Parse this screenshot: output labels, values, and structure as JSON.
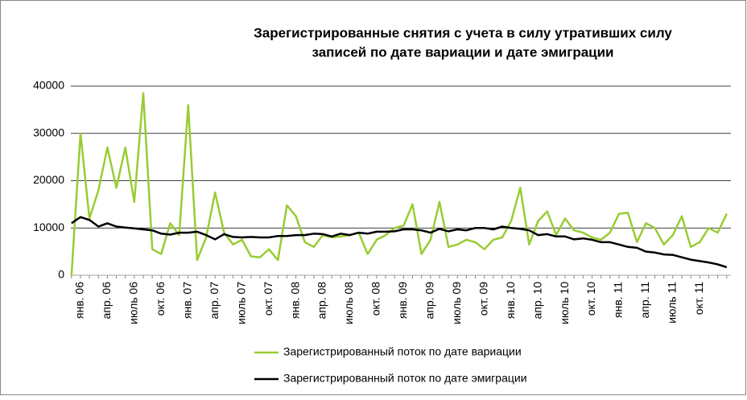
{
  "chart_data": {
    "type": "line",
    "title": [
      "Зарегистрированные снятия с учета в силу утративших силу",
      "записей по дате вариации и дате эмиграции"
    ],
    "categories": [
      null,
      "янв. 06",
      null,
      null,
      "апр. 06",
      null,
      null,
      "июль 06",
      null,
      null,
      "окт. 06",
      null,
      null,
      "янв. 07",
      null,
      null,
      "апр. 07",
      null,
      null,
      "июль 07",
      null,
      null,
      "окт. 07",
      null,
      null,
      "янв. 08",
      null,
      null,
      "апр. 08",
      null,
      null,
      "июль 08",
      null,
      null,
      "окт. 08",
      null,
      null,
      "янв. 09",
      null,
      null,
      "апр. 09",
      null,
      null,
      "июль 09",
      null,
      null,
      "окт. 09",
      null,
      null,
      "янв. 10",
      null,
      null,
      "апр. 10",
      null,
      null,
      "июль 10",
      null,
      null,
      "окт. 10",
      null,
      null,
      "янв. 11",
      null,
      null,
      "апр. 11",
      null,
      null,
      "июль 11",
      null,
      null,
      "окт. 11",
      null,
      null,
      null
    ],
    "series": [
      {
        "name": "Зарегистрированный поток по дате вариации",
        "color": "#99cc33",
        "values": [
          0,
          30000,
          12000,
          18000,
          27000,
          18500,
          27000,
          15500,
          38500,
          5500,
          4500,
          11000,
          8500,
          36000,
          3200,
          8000,
          17500,
          9000,
          6500,
          7500,
          4000,
          3800,
          5500,
          3200,
          14800,
          12500,
          7000,
          6000,
          8500,
          8000,
          8200,
          8500,
          9000,
          4500,
          7500,
          8500,
          10000,
          10500,
          15000,
          4500,
          7500,
          15500,
          6000,
          6500,
          7500,
          7000,
          5500,
          7500,
          8000,
          11500,
          18500,
          6500,
          11500,
          13500,
          8500,
          12000,
          9500,
          9000,
          8000,
          7500,
          9000,
          13000,
          13200,
          7000,
          11000,
          10000,
          6500,
          8500,
          12500,
          6000,
          7000,
          10000,
          9000,
          13000
        ]
      },
      {
        "name": "Зарегистрированный поток по дате эмиграции",
        "color": "#000000",
        "values": [
          11000,
          12300,
          11700,
          10300,
          11000,
          10300,
          10100,
          9900,
          9700,
          9500,
          8800,
          8600,
          9000,
          9000,
          9200,
          8500,
          7600,
          8700,
          8100,
          8000,
          8100,
          8000,
          8000,
          8300,
          8300,
          8500,
          8500,
          8800,
          8700,
          8200,
          8800,
          8500,
          9000,
          8800,
          9200,
          9200,
          9300,
          9700,
          9700,
          9500,
          9000,
          9800,
          9300,
          9700,
          9500,
          10000,
          10000,
          9700,
          10300,
          10000,
          9800,
          9500,
          8500,
          8700,
          8200,
          8200,
          7600,
          7800,
          7500,
          7000,
          7000,
          6500,
          6000,
          5800,
          5000,
          4800,
          4400,
          4300,
          3800,
          3300,
          3000,
          2700,
          2300,
          1700
        ]
      }
    ],
    "ylim": [
      0,
      40000
    ],
    "yticks": [
      0,
      10000,
      20000,
      30000,
      40000
    ],
    "grid": true,
    "legend": "bottom"
  }
}
